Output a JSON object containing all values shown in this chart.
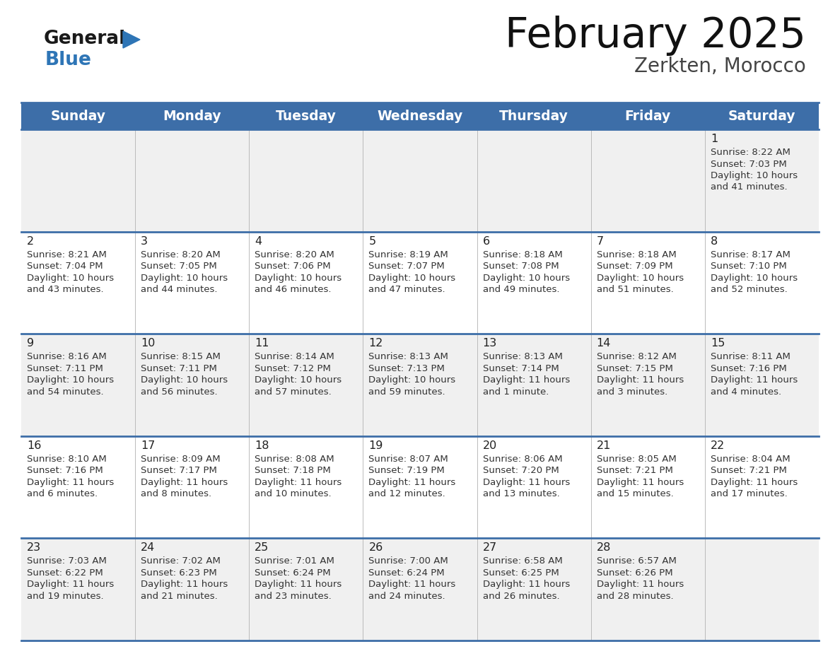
{
  "title": "February 2025",
  "subtitle": "Zerkten, Morocco",
  "days_of_week": [
    "Sunday",
    "Monday",
    "Tuesday",
    "Wednesday",
    "Thursday",
    "Friday",
    "Saturday"
  ],
  "header_bg": "#3D6EA8",
  "header_text": "#FFFFFF",
  "row_bg_light": "#F0F0F0",
  "row_bg_white": "#FFFFFF",
  "border_color": "#3D6EA8",
  "day_number_color": "#222222",
  "text_color": "#333333",
  "title_color": "#111111",
  "subtitle_color": "#444444",
  "logo_black": "#1a1a1a",
  "logo_blue": "#2E75B6",
  "calendar_data": [
    {
      "day": 1,
      "col": 6,
      "row": 0,
      "sunrise": "8:22 AM",
      "sunset": "7:03 PM",
      "daylight_h": "10 hours",
      "daylight_m": "and 41 minutes."
    },
    {
      "day": 2,
      "col": 0,
      "row": 1,
      "sunrise": "8:21 AM",
      "sunset": "7:04 PM",
      "daylight_h": "10 hours",
      "daylight_m": "and 43 minutes."
    },
    {
      "day": 3,
      "col": 1,
      "row": 1,
      "sunrise": "8:20 AM",
      "sunset": "7:05 PM",
      "daylight_h": "10 hours",
      "daylight_m": "and 44 minutes."
    },
    {
      "day": 4,
      "col": 2,
      "row": 1,
      "sunrise": "8:20 AM",
      "sunset": "7:06 PM",
      "daylight_h": "10 hours",
      "daylight_m": "and 46 minutes."
    },
    {
      "day": 5,
      "col": 3,
      "row": 1,
      "sunrise": "8:19 AM",
      "sunset": "7:07 PM",
      "daylight_h": "10 hours",
      "daylight_m": "and 47 minutes."
    },
    {
      "day": 6,
      "col": 4,
      "row": 1,
      "sunrise": "8:18 AM",
      "sunset": "7:08 PM",
      "daylight_h": "10 hours",
      "daylight_m": "and 49 minutes."
    },
    {
      "day": 7,
      "col": 5,
      "row": 1,
      "sunrise": "8:18 AM",
      "sunset": "7:09 PM",
      "daylight_h": "10 hours",
      "daylight_m": "and 51 minutes."
    },
    {
      "day": 8,
      "col": 6,
      "row": 1,
      "sunrise": "8:17 AM",
      "sunset": "7:10 PM",
      "daylight_h": "10 hours",
      "daylight_m": "and 52 minutes."
    },
    {
      "day": 9,
      "col": 0,
      "row": 2,
      "sunrise": "8:16 AM",
      "sunset": "7:11 PM",
      "daylight_h": "10 hours",
      "daylight_m": "and 54 minutes."
    },
    {
      "day": 10,
      "col": 1,
      "row": 2,
      "sunrise": "8:15 AM",
      "sunset": "7:11 PM",
      "daylight_h": "10 hours",
      "daylight_m": "and 56 minutes."
    },
    {
      "day": 11,
      "col": 2,
      "row": 2,
      "sunrise": "8:14 AM",
      "sunset": "7:12 PM",
      "daylight_h": "10 hours",
      "daylight_m": "and 57 minutes."
    },
    {
      "day": 12,
      "col": 3,
      "row": 2,
      "sunrise": "8:13 AM",
      "sunset": "7:13 PM",
      "daylight_h": "10 hours",
      "daylight_m": "and 59 minutes."
    },
    {
      "day": 13,
      "col": 4,
      "row": 2,
      "sunrise": "8:13 AM",
      "sunset": "7:14 PM",
      "daylight_h": "11 hours",
      "daylight_m": "and 1 minute."
    },
    {
      "day": 14,
      "col": 5,
      "row": 2,
      "sunrise": "8:12 AM",
      "sunset": "7:15 PM",
      "daylight_h": "11 hours",
      "daylight_m": "and 3 minutes."
    },
    {
      "day": 15,
      "col": 6,
      "row": 2,
      "sunrise": "8:11 AM",
      "sunset": "7:16 PM",
      "daylight_h": "11 hours",
      "daylight_m": "and 4 minutes."
    },
    {
      "day": 16,
      "col": 0,
      "row": 3,
      "sunrise": "8:10 AM",
      "sunset": "7:16 PM",
      "daylight_h": "11 hours",
      "daylight_m": "and 6 minutes."
    },
    {
      "day": 17,
      "col": 1,
      "row": 3,
      "sunrise": "8:09 AM",
      "sunset": "7:17 PM",
      "daylight_h": "11 hours",
      "daylight_m": "and 8 minutes."
    },
    {
      "day": 18,
      "col": 2,
      "row": 3,
      "sunrise": "8:08 AM",
      "sunset": "7:18 PM",
      "daylight_h": "11 hours",
      "daylight_m": "and 10 minutes."
    },
    {
      "day": 19,
      "col": 3,
      "row": 3,
      "sunrise": "8:07 AM",
      "sunset": "7:19 PM",
      "daylight_h": "11 hours",
      "daylight_m": "and 12 minutes."
    },
    {
      "day": 20,
      "col": 4,
      "row": 3,
      "sunrise": "8:06 AM",
      "sunset": "7:20 PM",
      "daylight_h": "11 hours",
      "daylight_m": "and 13 minutes."
    },
    {
      "day": 21,
      "col": 5,
      "row": 3,
      "sunrise": "8:05 AM",
      "sunset": "7:21 PM",
      "daylight_h": "11 hours",
      "daylight_m": "and 15 minutes."
    },
    {
      "day": 22,
      "col": 6,
      "row": 3,
      "sunrise": "8:04 AM",
      "sunset": "7:21 PM",
      "daylight_h": "11 hours",
      "daylight_m": "and 17 minutes."
    },
    {
      "day": 23,
      "col": 0,
      "row": 4,
      "sunrise": "7:03 AM",
      "sunset": "6:22 PM",
      "daylight_h": "11 hours",
      "daylight_m": "and 19 minutes."
    },
    {
      "day": 24,
      "col": 1,
      "row": 4,
      "sunrise": "7:02 AM",
      "sunset": "6:23 PM",
      "daylight_h": "11 hours",
      "daylight_m": "and 21 minutes."
    },
    {
      "day": 25,
      "col": 2,
      "row": 4,
      "sunrise": "7:01 AM",
      "sunset": "6:24 PM",
      "daylight_h": "11 hours",
      "daylight_m": "and 23 minutes."
    },
    {
      "day": 26,
      "col": 3,
      "row": 4,
      "sunrise": "7:00 AM",
      "sunset": "6:24 PM",
      "daylight_h": "11 hours",
      "daylight_m": "and 24 minutes."
    },
    {
      "day": 27,
      "col": 4,
      "row": 4,
      "sunrise": "6:58 AM",
      "sunset": "6:25 PM",
      "daylight_h": "11 hours",
      "daylight_m": "and 26 minutes."
    },
    {
      "day": 28,
      "col": 5,
      "row": 4,
      "sunrise": "6:57 AM",
      "sunset": "6:26 PM",
      "daylight_h": "11 hours",
      "daylight_m": "and 28 minutes."
    }
  ]
}
